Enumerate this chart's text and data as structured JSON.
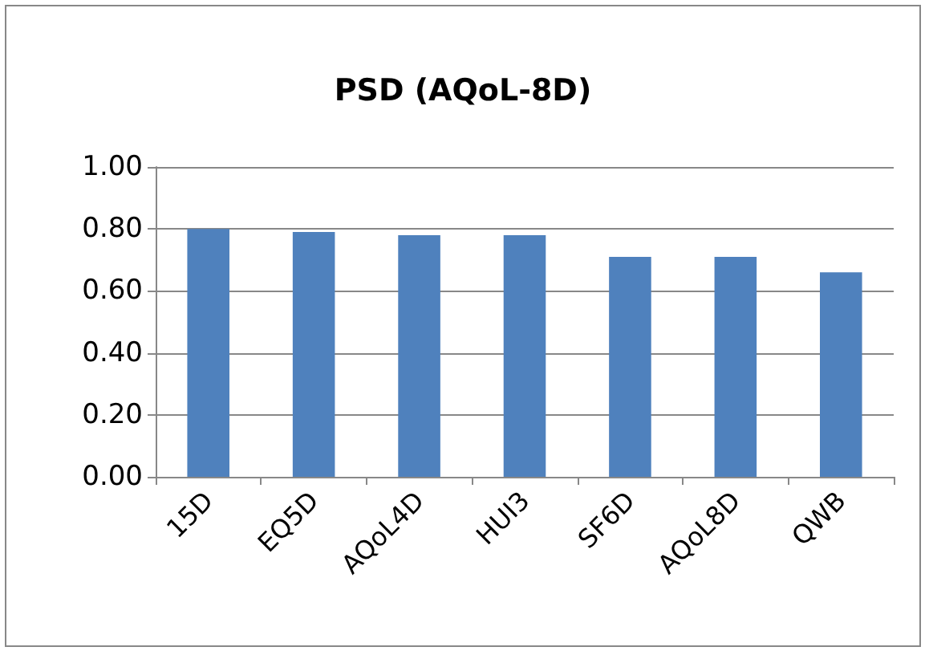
{
  "chart_data": {
    "type": "bar",
    "title": "PSD (AQoL-8D)",
    "categories": [
      "15D",
      "EQ5D",
      "AQoL4D",
      "HUI3",
      "SF6D",
      "AQoL8D",
      "QWB"
    ],
    "series": [
      {
        "color": "#4f81bd",
        "values": [
          0.8,
          0.79,
          0.78,
          0.78,
          0.71,
          0.71,
          0.66
        ]
      }
    ],
    "ylim": [
      0,
      1
    ],
    "yticks": [
      {
        "value": 0,
        "label": "0.00"
      },
      {
        "value": 0.2,
        "label": "0.20"
      },
      {
        "value": 0.4,
        "label": "0.40"
      },
      {
        "value": 0.6,
        "label": "0.60"
      },
      {
        "value": 0.8,
        "label": "0.80"
      },
      {
        "value": 1,
        "label": "1.00"
      }
    ],
    "grid": "y"
  }
}
